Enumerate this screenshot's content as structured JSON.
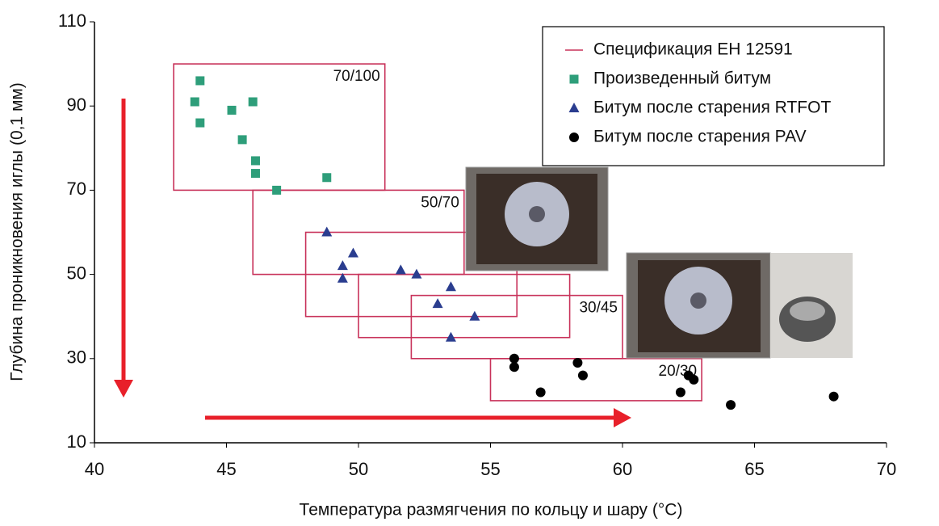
{
  "chart_data": {
    "type": "scatter",
    "x_label": "Температура размягчения по кольцу и шару (°C)",
    "y_label": "Глубина проникновения иглы (0,1 мм)",
    "xlim": [
      40,
      70
    ],
    "ylim": [
      10,
      110
    ],
    "xticks": [
      40,
      45,
      50,
      55,
      60,
      65,
      70
    ],
    "yticks": [
      10,
      30,
      50,
      70,
      90,
      110
    ],
    "grid": false,
    "legend": "upper right",
    "spec": {
      "name": "Спецификация  ЕН 12591",
      "color": "#c8325a",
      "boxes": [
        {
          "label": "70/100",
          "xlim": [
            43,
            51
          ],
          "ylim": [
            70,
            100
          ]
        },
        {
          "label": "50/70",
          "xlim": [
            46,
            54
          ],
          "ylim": [
            50,
            70
          ]
        },
        {
          "label": null,
          "xlim": [
            48,
            56
          ],
          "ylim": [
            40,
            60
          ]
        },
        {
          "label": null,
          "xlim": [
            50,
            58
          ],
          "ylim": [
            35,
            50
          ]
        },
        {
          "label": "30/45",
          "xlim": [
            52,
            60
          ],
          "ylim": [
            30,
            45
          ]
        },
        {
          "label": "20/30",
          "xlim": [
            55,
            63
          ],
          "ylim": [
            20,
            30
          ]
        }
      ]
    },
    "series": [
      {
        "name": "Произведенный битум",
        "marker": "square",
        "color": "#2e9e7a",
        "x": [
          44.0,
          43.8,
          44.0,
          45.2,
          46.0,
          45.6,
          46.1,
          46.1,
          46.9,
          48.8
        ],
        "values": [
          96,
          91,
          86,
          89,
          91,
          82,
          77,
          74,
          70,
          73
        ]
      },
      {
        "name": "Битум после старения  RTFOT",
        "marker": "triangle",
        "color": "#2a3d8f",
        "x": [
          48.8,
          49.8,
          49.4,
          49.4,
          51.6,
          52.2,
          53.5,
          53.0,
          54.4,
          53.5
        ],
        "values": [
          60,
          55,
          52,
          49,
          51,
          50,
          47,
          43,
          40,
          35
        ]
      },
      {
        "name": "Битум после старения PAV",
        "marker": "circle",
        "color": "#000000",
        "x": [
          55.9,
          55.9,
          56.9,
          58.3,
          58.5,
          62.2,
          62.5,
          62.7,
          64.1,
          68.0
        ],
        "values": [
          30,
          28,
          22,
          29,
          26,
          22,
          26,
          25,
          19,
          21
        ]
      }
    ]
  }
}
